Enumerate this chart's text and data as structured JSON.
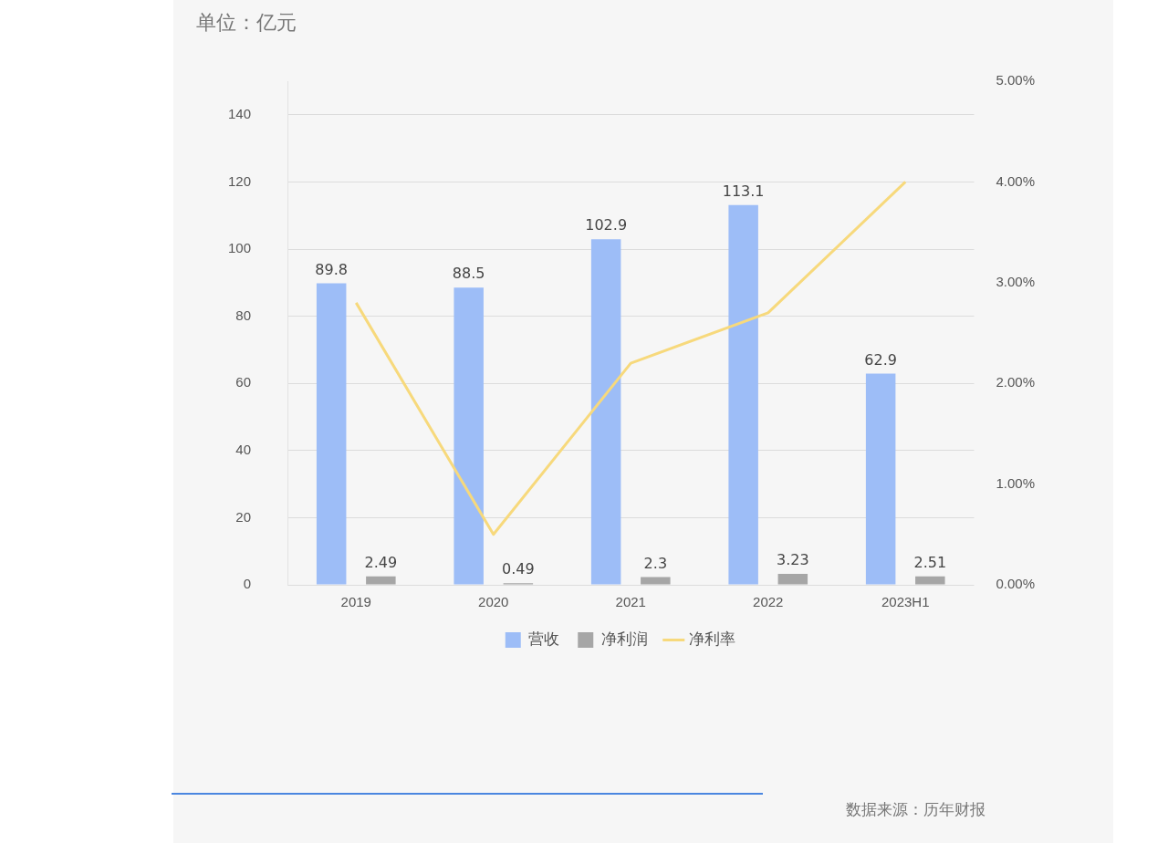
{
  "chart_data": {
    "type": "bar",
    "title": "单位：亿元",
    "categories": [
      "2019",
      "2020",
      "2021",
      "2022",
      "2023H1"
    ],
    "series": [
      {
        "name": "营收",
        "color": "#9dbdf7",
        "values": [
          89.8,
          88.5,
          102.9,
          113.1,
          62.9
        ],
        "value_labels": [
          "89.8",
          "88.5",
          "102.9",
          "113.1",
          "62.9"
        ]
      },
      {
        "name": "净利润",
        "color": "#a6a6a6",
        "values": [
          2.49,
          0.49,
          2.3,
          3.23,
          2.51
        ],
        "value_labels": [
          "2.49",
          "0.49",
          "2.3",
          "3.23",
          "2.51"
        ]
      },
      {
        "name": "净利率",
        "type": "line",
        "axis": "y2",
        "color": "#f7d97c",
        "values": [
          2.8,
          0.5,
          2.2,
          2.7,
          4.0
        ]
      }
    ],
    "ylim": [
      0,
      150
    ],
    "yticks": [
      0,
      20,
      40,
      60,
      80,
      100,
      120,
      140
    ],
    "y2lim": [
      0,
      5
    ],
    "y2ticks": [
      {
        "value": 0,
        "label": "0.00%"
      },
      {
        "value": 1,
        "label": "1.00%"
      },
      {
        "value": 2,
        "label": "2.00%"
      },
      {
        "value": 3,
        "label": "3.00%"
      },
      {
        "value": 4,
        "label": "4.00%"
      },
      {
        "value": 5,
        "label": "5.00%"
      }
    ],
    "grid": "y",
    "legend": "bottom",
    "marker": "none",
    "line_style": "solid",
    "annotations": [
      "数据来源：历年财报"
    ]
  }
}
